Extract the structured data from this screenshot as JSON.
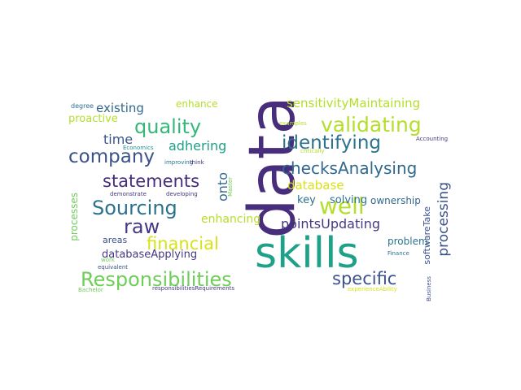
{
  "words": {
    "data": "data",
    "skills": "skills",
    "responsibilities": "Responsibilities",
    "quality": "quality",
    "validating": "validating",
    "identifying": "identifying",
    "company": "company",
    "sourcing": "Sourcing",
    "raw": "raw",
    "statements": "statements",
    "checksAnalysing": "checksAnalysing",
    "well": "well",
    "specific": "specific",
    "financial": "financial",
    "pointsUpdating": "pointsUpdating",
    "processing": "processing",
    "adhering": "adhering",
    "time": "time",
    "existing": "existing",
    "sensitivityMaintaining": "sensitivityMaintaining",
    "database": "database",
    "enhancing": "enhancing",
    "solving": "solving",
    "onto": "onto",
    "proactive": "proactive",
    "enhance": "enhance",
    "key": "key",
    "ownership": "ownership",
    "problem": "problem",
    "databaseApplying": "databaseApplying",
    "areas": "areas",
    "processes": "processes",
    "softwareTake": "softwareTake",
    "degree": "degree",
    "examples": "examples",
    "economics": "Economics",
    "improving": "improving",
    "think": "think",
    "critically": "critically",
    "accounting": "Accounting",
    "demonstrate": "demonstrate",
    "developing": "developing",
    "master": "Master",
    "work": "work",
    "equivalent": "equivalent",
    "bachelor": "Bachelor",
    "responsibilitiesRequirements": "responsibilitiesRequirements",
    "experienceAbility": "experienceAbility",
    "finance": "Finance",
    "business": "Business"
  },
  "colors": {
    "deep_purple": "#472d7b",
    "purple": "#443983",
    "indigo": "#3b528b",
    "blue": "#31688e",
    "teal_blue": "#2c728e",
    "teal": "#21918c",
    "green_teal": "#1fa088",
    "green": "#35b779",
    "light_green": "#6ece58",
    "yellow_green": "#b5de2b",
    "yellow": "#d8e219"
  }
}
